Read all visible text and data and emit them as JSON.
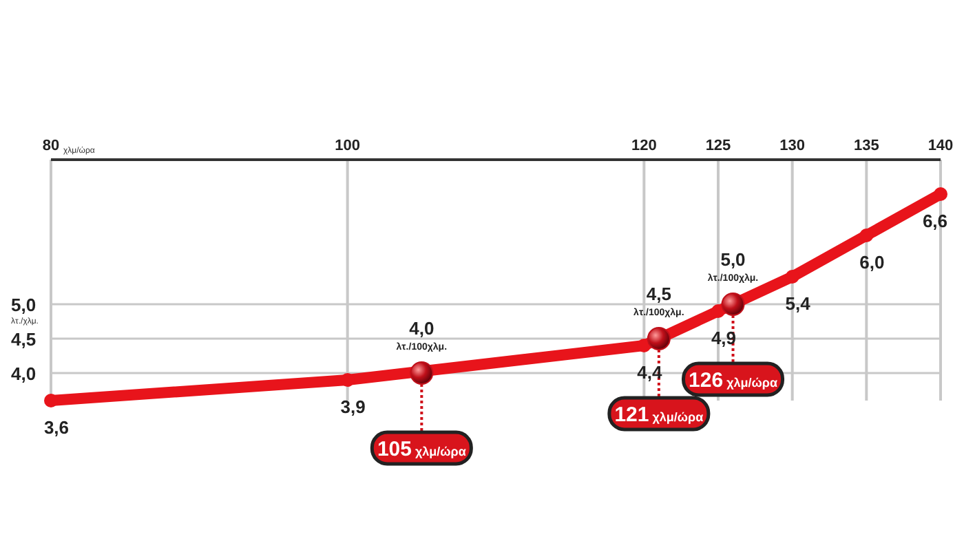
{
  "chart_data": {
    "type": "line",
    "xlabel": "χλμ/ώρα",
    "ylabel": "λτ./χλμ.",
    "xlim": [
      80,
      140
    ],
    "xticks": [
      80,
      100,
      120,
      125,
      130,
      135,
      140
    ],
    "ylim": [
      3.6,
      7.1
    ],
    "yticks": [
      {
        "value": 4,
        "label": "4,0"
      },
      {
        "value": 4.5,
        "label": "4,5"
      },
      {
        "value": 5,
        "label": "5,0"
      }
    ],
    "grid": true,
    "marker": "circle",
    "line_style": "solid",
    "series": [
      {
        "color": "#e8141b",
        "x": [
          80,
          100,
          120,
          125,
          130,
          135,
          140
        ],
        "values": [
          3.6,
          3.9,
          4.4,
          4.9,
          5.4,
          6.0,
          6.6
        ],
        "value_labels": [
          "3,6",
          "3,9",
          "4,4",
          "4,9",
          "5,4",
          "6,0",
          "6,6"
        ]
      },
      {
        "type": "scatter",
        "color": "#c0101a",
        "x": [
          105,
          121,
          126
        ],
        "values": [
          4.0,
          4.5,
          5.0
        ],
        "value_labels": [
          "4,0\nλτ./100χλμ.",
          "4,5\nλτ./100χλμ.",
          "5,0\nλτ./100χλμ."
        ]
      }
    ],
    "annotations": [
      {
        "text": "105 χλμ/ώρα",
        "x": 105,
        "y": 4.0
      },
      {
        "text": "121 χλμ/ώρα",
        "x": 121,
        "y": 4.5
      },
      {
        "text": "126 χλμ/ώρα",
        "x": 126,
        "y": 5.0
      }
    ]
  }
}
